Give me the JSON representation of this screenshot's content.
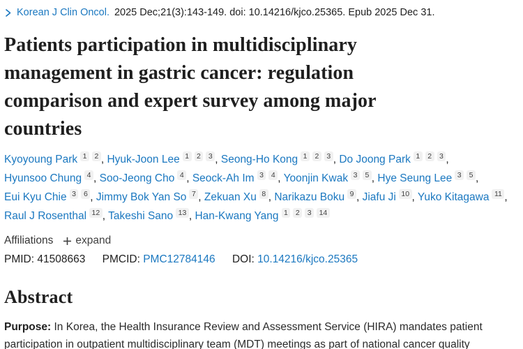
{
  "citation": {
    "journal": "Korean J Clin Oncol.",
    "details": "2025 Dec;21(3):143-149. doi: 10.14216/kjco.25365. Epub 2025 Dec 31."
  },
  "title": "Patients participation in multidisciplinary management in gastric cancer: regulation comparison and expert survey among major countries",
  "authors": [
    {
      "name": "Kyoyoung Park",
      "sups": [
        "1",
        "2"
      ]
    },
    {
      "name": "Hyuk-Joon Lee",
      "sups": [
        "1",
        "2",
        "3"
      ]
    },
    {
      "name": "Seong-Ho Kong",
      "sups": [
        "1",
        "2",
        "3"
      ]
    },
    {
      "name": "Do Joong Park",
      "sups": [
        "1",
        "2",
        "3"
      ]
    },
    {
      "name": "Hyunsoo Chung",
      "sups": [
        "4"
      ]
    },
    {
      "name": "Soo-Jeong Cho",
      "sups": [
        "4"
      ]
    },
    {
      "name": "Seock-Ah Im",
      "sups": [
        "3",
        "4"
      ]
    },
    {
      "name": "Yoonjin Kwak",
      "sups": [
        "3",
        "5"
      ]
    },
    {
      "name": "Hye Seung Lee",
      "sups": [
        "3",
        "5"
      ]
    },
    {
      "name": "Eui Kyu Chie",
      "sups": [
        "3",
        "6"
      ]
    },
    {
      "name": "Jimmy Bok Yan So",
      "sups": [
        "7"
      ]
    },
    {
      "name": "Zekuan Xu",
      "sups": [
        "8"
      ]
    },
    {
      "name": "Narikazu Boku",
      "sups": [
        "9"
      ]
    },
    {
      "name": "Jiafu Ji",
      "sups": [
        "10"
      ]
    },
    {
      "name": "Yuko Kitagawa",
      "sups": [
        "11"
      ]
    },
    {
      "name": "Raul J Rosenthal",
      "sups": [
        "12"
      ]
    },
    {
      "name": "Takeshi Sano",
      "sups": [
        "13"
      ]
    },
    {
      "name": "Han-Kwang Yang",
      "sups": [
        "1",
        "2",
        "3",
        "14"
      ]
    }
  ],
  "author_separator": ", ",
  "affiliations": {
    "label": "Affiliations",
    "expand_label": "expand"
  },
  "identifiers": {
    "pmid_label": "PMID:",
    "pmid_value": "41508663",
    "pmcid_label": "PMCID:",
    "pmcid_value": "PMC12784146",
    "doi_label": "DOI:",
    "doi_value": "10.14216/kjco.25365"
  },
  "abstract": {
    "heading": "Abstract",
    "purpose_label": "Purpose:",
    "purpose_text": "In Korea, the Health Insurance Review and Assessment Service (HIRA) mandates patient participation in outpatient multidisciplinary team (MDT) meetings as part of national cancer quality"
  },
  "colors": {
    "link": "#1b78c0",
    "text": "#212121"
  }
}
